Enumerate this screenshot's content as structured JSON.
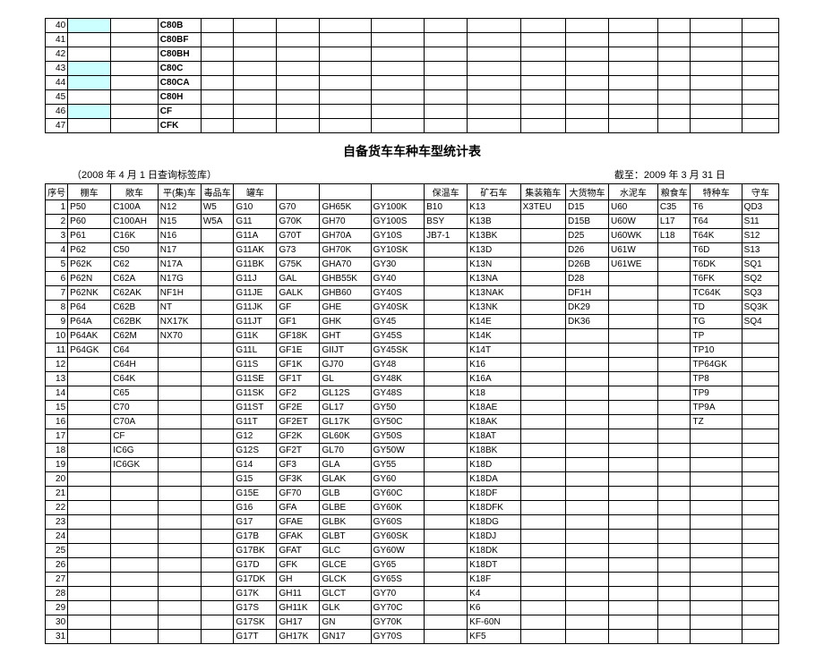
{
  "top_table": {
    "rows": [
      {
        "n": "40",
        "cols": [
          "",
          "",
          "C80B",
          "",
          "",
          "",
          "",
          "",
          "",
          "",
          "",
          "",
          "",
          "",
          "",
          ""
        ],
        "hl": [
          0
        ],
        "bold": [
          2
        ]
      },
      {
        "n": "41",
        "cols": [
          "",
          "",
          "C80BF",
          "",
          "",
          "",
          "",
          "",
          "",
          "",
          "",
          "",
          "",
          "",
          "",
          ""
        ],
        "hl": [],
        "bold": [
          2
        ]
      },
      {
        "n": "42",
        "cols": [
          "",
          "",
          "C80BH",
          "",
          "",
          "",
          "",
          "",
          "",
          "",
          "",
          "",
          "",
          "",
          "",
          ""
        ],
        "hl": [],
        "bold": [
          2
        ]
      },
      {
        "n": "43",
        "cols": [
          "",
          "",
          "C80C",
          "",
          "",
          "",
          "",
          "",
          "",
          "",
          "",
          "",
          "",
          "",
          "",
          ""
        ],
        "hl": [
          0
        ],
        "bold": [
          2
        ]
      },
      {
        "n": "44",
        "cols": [
          "",
          "",
          "C80CA",
          "",
          "",
          "",
          "",
          "",
          "",
          "",
          "",
          "",
          "",
          "",
          "",
          ""
        ],
        "hl": [
          0
        ],
        "bold": [
          2
        ]
      },
      {
        "n": "45",
        "cols": [
          "",
          "",
          "C80H",
          "",
          "",
          "",
          "",
          "",
          "",
          "",
          "",
          "",
          "",
          "",
          "",
          ""
        ],
        "hl": [],
        "bold": [
          2
        ]
      },
      {
        "n": "46",
        "cols": [
          "",
          "",
          "CF",
          "",
          "",
          "",
          "",
          "",
          "",
          "",
          "",
          "",
          "",
          "",
          "",
          ""
        ],
        "hl": [
          0
        ],
        "bold": [
          2
        ]
      },
      {
        "n": "47",
        "cols": [
          "",
          "",
          "CFK",
          "",
          "",
          "",
          "",
          "",
          "",
          "",
          "",
          "",
          "",
          "",
          "",
          ""
        ],
        "hl": [],
        "bold": [
          2
        ]
      }
    ]
  },
  "title": "自备货车车种车型统计表",
  "sub_left": "（2008 年 4 月 1 日查询标签库）",
  "sub_right": "截至：2009 年 3 月 31 日",
  "main_table": {
    "header": [
      "序号",
      "棚车",
      "敞车",
      "平(集)车",
      "毒品车",
      "罐车",
      "",
      "",
      "",
      "保温车",
      "矿石车",
      "集装箱车",
      "大货物车",
      "水泥车",
      "粮食车",
      "特种车",
      "守车"
    ],
    "rows": [
      [
        "1",
        "P50",
        "C100A",
        "N12",
        "W5",
        "G10",
        "G70",
        "GH65K",
        "GY100K",
        "B10",
        "K13",
        "X3TEU",
        "D15",
        "U60",
        "C35",
        "T6",
        "QD3"
      ],
      [
        "2",
        "P60",
        "C100AH",
        "N15",
        "W5A",
        "G11",
        "G70K",
        "GH70",
        "GY100S",
        "BSY",
        "K13B",
        "",
        "D15B",
        "U60W",
        "L17",
        "T64",
        "S11"
      ],
      [
        "3",
        "P61",
        "C16K",
        "N16",
        "",
        "G11A",
        "G70T",
        "GH70A",
        "GY10S",
        "JB7-1",
        "K13BK",
        "",
        "D25",
        "U60WK",
        "L18",
        "T64K",
        "S12"
      ],
      [
        "4",
        "P62",
        "C50",
        "N17",
        "",
        "G11AK",
        "G73",
        "GH70K",
        "GY10SK",
        "",
        "K13D",
        "",
        "D26",
        "U61W",
        "",
        "T6D",
        "S13"
      ],
      [
        "5",
        "P62K",
        "C62",
        "N17A",
        "",
        "G11BK",
        "G75K",
        "GHA70",
        "GY30",
        "",
        "K13N",
        "",
        "D26B",
        "U61WE",
        "",
        "T6DK",
        "SQ1"
      ],
      [
        "6",
        "P62N",
        "C62A",
        "N17G",
        "",
        "G11J",
        "GAL",
        "GHB55K",
        "GY40",
        "",
        "K13NA",
        "",
        "D28",
        "",
        "",
        "T6FK",
        "SQ2"
      ],
      [
        "7",
        "P62NK",
        "C62AK",
        "NF1H",
        "",
        "G11JE",
        "GALK",
        "GHB60",
        "GY40S",
        "",
        "K13NAK",
        "",
        "DF1H",
        "",
        "",
        "TC64K",
        "SQ3"
      ],
      [
        "8",
        "P64",
        "C62B",
        "NT",
        "",
        "G11JK",
        "GF",
        "GHE",
        "GY40SK",
        "",
        "K13NK",
        "",
        "DK29",
        "",
        "",
        "TD",
        "SQ3K"
      ],
      [
        "9",
        "P64A",
        "C62BK",
        "NX17K",
        "",
        "G11JT",
        "GF1",
        "GHK",
        "GY45",
        "",
        "K14E",
        "",
        "DK36",
        "",
        "",
        "TG",
        "SQ4"
      ],
      [
        "10",
        "P64AK",
        "C62M",
        "NX70",
        "",
        "G11K",
        "GF18K",
        "GHT",
        "GY45S",
        "",
        "K14K",
        "",
        "",
        "",
        "",
        "TP",
        ""
      ],
      [
        "11",
        "P64GK",
        "C64",
        "",
        "",
        "G11L",
        "GF1E",
        "GIIJT",
        "GY45SK",
        "",
        "K14T",
        "",
        "",
        "",
        "",
        "TP10",
        ""
      ],
      [
        "12",
        "",
        "C64H",
        "",
        "",
        "G11S",
        "GF1K",
        "GJ70",
        "GY48",
        "",
        "K16",
        "",
        "",
        "",
        "",
        "TP64GK",
        ""
      ],
      [
        "13",
        "",
        "C64K",
        "",
        "",
        "G11SE",
        "GF1T",
        "GL",
        "GY48K",
        "",
        "K16A",
        "",
        "",
        "",
        "",
        "TP8",
        ""
      ],
      [
        "14",
        "",
        "C65",
        "",
        "",
        "G11SK",
        "GF2",
        "GL12S",
        "GY48S",
        "",
        "K18",
        "",
        "",
        "",
        "",
        "TP9",
        ""
      ],
      [
        "15",
        "",
        "C70",
        "",
        "",
        "G11ST",
        "GF2E",
        "GL17",
        "GY50",
        "",
        "K18AE",
        "",
        "",
        "",
        "",
        "TP9A",
        ""
      ],
      [
        "16",
        "",
        "C70A",
        "",
        "",
        "G11T",
        "GF2ET",
        "GL17K",
        "GY50C",
        "",
        "K18AK",
        "",
        "",
        "",
        "",
        "TZ",
        ""
      ],
      [
        "17",
        "",
        "CF",
        "",
        "",
        "G12",
        "GF2K",
        "GL60K",
        "GY50S",
        "",
        "K18AT",
        "",
        "",
        "",
        "",
        "",
        ""
      ],
      [
        "18",
        "",
        "IC6G",
        "",
        "",
        "G12S",
        "GF2T",
        "GL70",
        "GY50W",
        "",
        "K18BK",
        "",
        "",
        "",
        "",
        "",
        ""
      ],
      [
        "19",
        "",
        "IC6GK",
        "",
        "",
        "G14",
        "GF3",
        "GLA",
        "GY55",
        "",
        "K18D",
        "",
        "",
        "",
        "",
        "",
        ""
      ],
      [
        "20",
        "",
        "",
        "",
        "",
        "G15",
        "GF3K",
        "GLAK",
        "GY60",
        "",
        "K18DA",
        "",
        "",
        "",
        "",
        "",
        ""
      ],
      [
        "21",
        "",
        "",
        "",
        "",
        "G15E",
        "GF70",
        "GLB",
        "GY60C",
        "",
        "K18DF",
        "",
        "",
        "",
        "",
        "",
        ""
      ],
      [
        "22",
        "",
        "",
        "",
        "",
        "G16",
        "GFA",
        "GLBE",
        "GY60K",
        "",
        "K18DFK",
        "",
        "",
        "",
        "",
        "",
        ""
      ],
      [
        "23",
        "",
        "",
        "",
        "",
        "G17",
        "GFAE",
        "GLBK",
        "GY60S",
        "",
        "K18DG",
        "",
        "",
        "",
        "",
        "",
        ""
      ],
      [
        "24",
        "",
        "",
        "",
        "",
        "G17B",
        "GFAK",
        "GLBT",
        "GY60SK",
        "",
        "K18DJ",
        "",
        "",
        "",
        "",
        "",
        ""
      ],
      [
        "25",
        "",
        "",
        "",
        "",
        "G17BK",
        "GFAT",
        "GLC",
        "GY60W",
        "",
        "K18DK",
        "",
        "",
        "",
        "",
        "",
        ""
      ],
      [
        "26",
        "",
        "",
        "",
        "",
        "G17D",
        "GFK",
        "GLCE",
        "GY65",
        "",
        "K18DT",
        "",
        "",
        "",
        "",
        "",
        ""
      ],
      [
        "27",
        "",
        "",
        "",
        "",
        "G17DK",
        "GH",
        "GLCK",
        "GY65S",
        "",
        "K18F",
        "",
        "",
        "",
        "",
        "",
        ""
      ],
      [
        "28",
        "",
        "",
        "",
        "",
        "G17K",
        "GH11",
        "GLCT",
        "GY70",
        "",
        "K4",
        "",
        "",
        "",
        "",
        "",
        ""
      ],
      [
        "29",
        "",
        "",
        "",
        "",
        "G17S",
        "GH11K",
        "GLK",
        "GY70C",
        "",
        "K6",
        "",
        "",
        "",
        "",
        "",
        ""
      ],
      [
        "30",
        "",
        "",
        "",
        "",
        "G17SK",
        "GH17",
        "GN",
        "GY70K",
        "",
        "KF-60N",
        "",
        "",
        "",
        "",
        "",
        ""
      ],
      [
        "31",
        "",
        "",
        "",
        "",
        "G17T",
        "GH17K",
        "GN17",
        "GY70S",
        "",
        "KF5",
        "",
        "",
        "",
        "",
        "",
        ""
      ]
    ]
  }
}
